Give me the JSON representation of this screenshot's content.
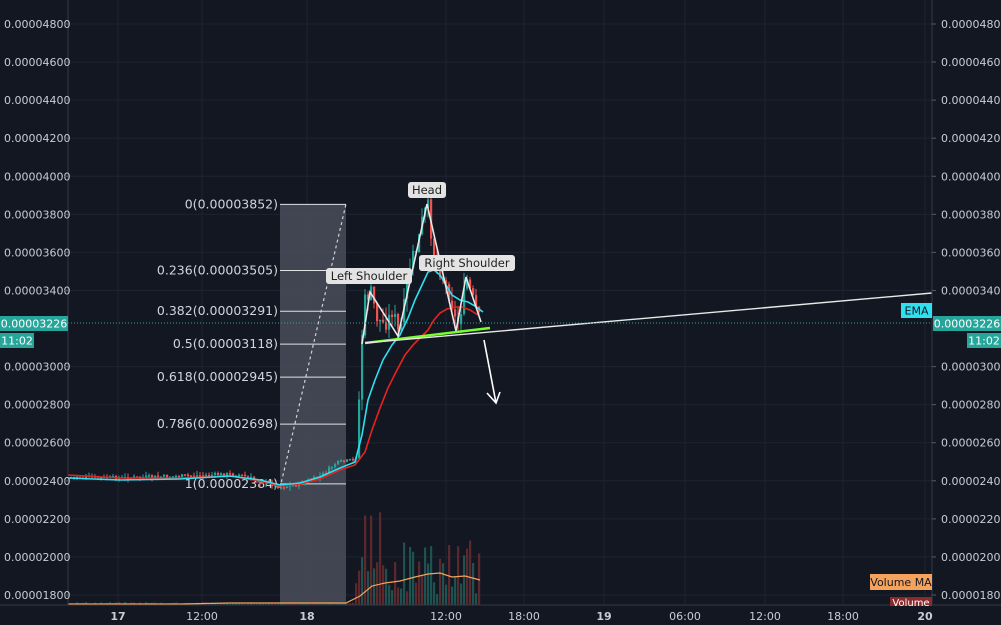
{
  "chart_data": {
    "type": "candlestick",
    "y_ticks": [
      "0.00004800",
      "0.00004600",
      "0.00004400",
      "0.00004200",
      "0.00004000",
      "0.00003800",
      "0.00003600",
      "0.00003400",
      "0.00003000",
      "0.00002800",
      "0.00002600",
      "0.00002400",
      "0.00002200",
      "0.00002000",
      "0.00001800"
    ],
    "y_tick_values": [
      4.8e-05,
      4.6e-05,
      4.4e-05,
      4.2e-05,
      4e-05,
      3.8e-05,
      3.6e-05,
      3.4e-05,
      3e-05,
      2.8e-05,
      2.6e-05,
      2.4e-05,
      2.2e-05,
      2e-05,
      1.8e-05
    ],
    "ylim": [
      1.73e-05,
      4.93e-05
    ],
    "x_ticks": [
      "17",
      "12:00",
      "18",
      "12:00",
      "18:00",
      "19",
      "06:00",
      "12:00",
      "18:00",
      "20"
    ],
    "x_tick_bold": [
      true,
      false,
      true,
      false,
      false,
      true,
      false,
      false,
      false,
      true
    ],
    "current_price": "0.00003226",
    "current_price_value": 3.226e-05,
    "countdown": "11:02",
    "fib_levels": [
      {
        "label": "0(0.00003852)",
        "value": 3.852e-05
      },
      {
        "label": "0.236(0.00003505)",
        "value": 3.505e-05
      },
      {
        "label": "0.382(0.00003291)",
        "value": 3.291e-05
      },
      {
        "label": "0.5(0.00003118)",
        "value": 3.118e-05
      },
      {
        "label": "0.618(0.00002945)",
        "value": 2.945e-05
      },
      {
        "label": "0.786(0.00002698)",
        "value": 2.698e-05
      },
      {
        "label": "1(0.00002384)",
        "value": 2.384e-05
      }
    ],
    "annotations": {
      "left_shoulder": "Left Shoulder",
      "head": "Head",
      "right_shoulder": "Right Shoulder"
    },
    "legend": {
      "ema": "EMA",
      "volume_ma": "Volume MA",
      "volume": "Volume"
    },
    "colors": {
      "up": "#26a69a",
      "down": "#ef5350",
      "ema_fast": "#2fe0f0",
      "ema_slow": "#e8231f",
      "trendline": "#ffffff",
      "neckline": "#76ff2c",
      "volume_ma": "#f5a35c",
      "fib_fill": "#4a4e5a"
    }
  }
}
